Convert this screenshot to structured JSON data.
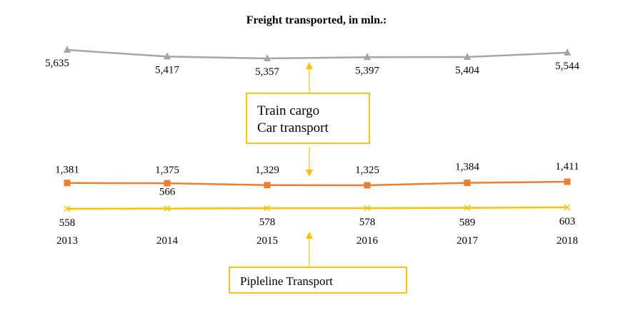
{
  "chart_data": {
    "type": "line",
    "title": "Freight transported, in mln.:",
    "categories": [
      "2013",
      "2014",
      "2015",
      "2016",
      "2017",
      "2018"
    ],
    "series": [
      {
        "name": "Train cargo",
        "values": [
          5635,
          5417,
          5357,
          5397,
          5404,
          5544
        ],
        "labels": [
          "5,635",
          "5,417",
          "5,357",
          "5,397",
          "5,404",
          "5,544"
        ],
        "color": "#a5a5a5",
        "marker": "triangle"
      },
      {
        "name": "Car transport",
        "values": [
          1381,
          1375,
          1329,
          1325,
          1384,
          1411
        ],
        "labels": [
          "1,381",
          "1,375",
          "1,329",
          "1,325",
          "1,384",
          "1,411"
        ],
        "color": "#ed7d31",
        "marker": "square"
      },
      {
        "name": "Pipleline  Transport",
        "values": [
          558,
          566,
          578,
          578,
          589,
          603
        ],
        "labels": [
          "558",
          "566",
          "578",
          "578",
          "589",
          "603"
        ],
        "color": "#ffc000",
        "marker": "x"
      }
    ],
    "callouts": {
      "rail_car": [
        "Train cargo",
        "Car transport"
      ],
      "pipeline": "Pipleline  Transport"
    },
    "arrow_color": "#ffc000",
    "box_border_color": "#f5c518"
  }
}
